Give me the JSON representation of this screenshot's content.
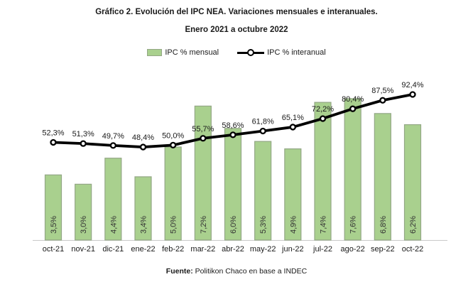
{
  "title": "Gráfico 2. Evolución del IPC NEA. Variaciones mensuales e interanuales.",
  "subtitle": "Enero 2021 a octubre 2022",
  "legend": {
    "bar_label": "IPC % mensual",
    "line_label": "IPC % interanual"
  },
  "footer": {
    "label": "Fuente:",
    "text": "Politikon Chaco en base a INDEC"
  },
  "colors": {
    "bar_fill": "#a9d08e",
    "bar_border": "#93a785",
    "line": "#000000",
    "marker_fill": "#ffffff",
    "axis": "#c9c9c9",
    "line_label_text": "#1a1a1a",
    "bar_label_text": "#333333"
  },
  "chart_data": {
    "type": "bar",
    "title": "Gráfico 2. Evolución del IPC NEA. Variaciones mensuales e interanuales.",
    "subtitle": "Enero 2021 a octubre 2022",
    "categories": [
      "oct-21",
      "nov-21",
      "dic-21",
      "ene-22",
      "feb-22",
      "mar-22",
      "abr-22",
      "may-22",
      "jun-22",
      "jul-22",
      "ago-22",
      "sep-22",
      "oct-22"
    ],
    "series": [
      {
        "name": "IPC % mensual",
        "type": "bar",
        "values": [
          3.5,
          3.0,
          4.4,
          3.4,
          5.0,
          7.2,
          6.0,
          5.3,
          4.9,
          7.4,
          7.6,
          6.8,
          6.2
        ],
        "labels": [
          "3,5%",
          "3,0%",
          "4,4%",
          "3,4%",
          "5,0%",
          "7,2%",
          "6,0%",
          "5,3%",
          "4,9%",
          "7,4%",
          "7,6%",
          "6,8%",
          "6,2%"
        ]
      },
      {
        "name": "IPC % interanual",
        "type": "line",
        "values": [
          52.3,
          51.3,
          49.7,
          48.4,
          50.0,
          55.7,
          58.6,
          61.8,
          65.1,
          72.2,
          80.4,
          87.5,
          92.4
        ],
        "labels": [
          "52,3%",
          "51,3%",
          "49,7%",
          "48,4%",
          "50,0%",
          "55,7%",
          "58,6%",
          "61,8%",
          "65,1%",
          "72,2%",
          "80,4%",
          "87,5%",
          "92,4%"
        ]
      }
    ],
    "grid": false,
    "value_labels": true,
    "legend_position": "top"
  }
}
